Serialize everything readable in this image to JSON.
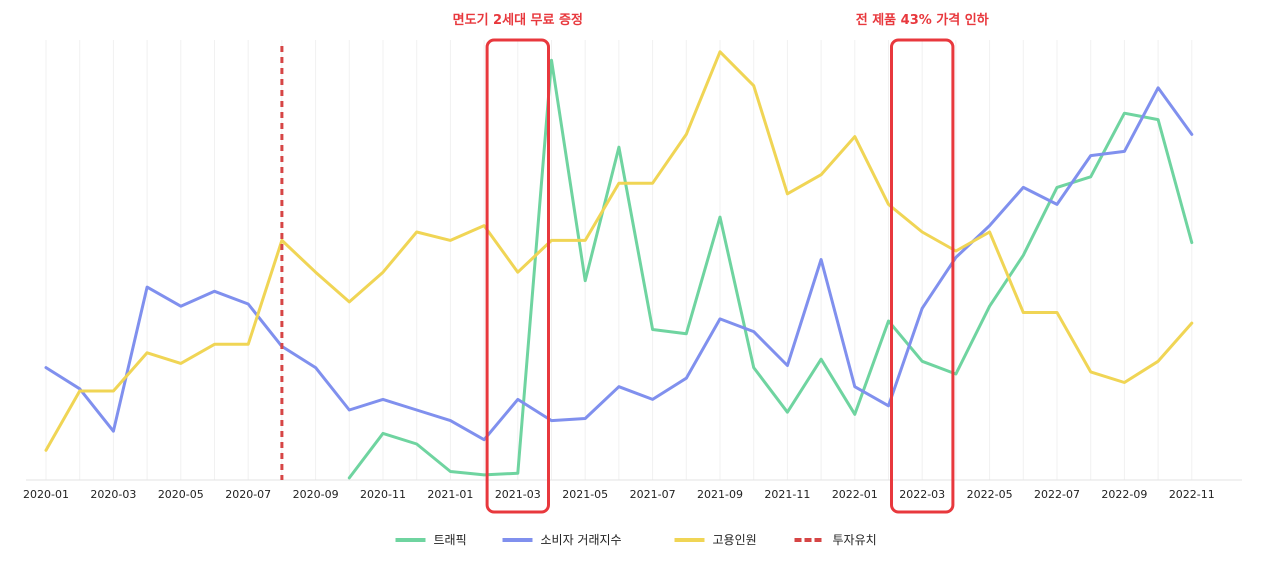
{
  "chart_data": {
    "type": "line",
    "x": [
      "2020-01",
      "2020-02",
      "2020-03",
      "2020-04",
      "2020-05",
      "2020-06",
      "2020-07",
      "2020-08",
      "2020-09",
      "2020-10",
      "2020-11",
      "2020-12",
      "2021-01",
      "2021-02",
      "2021-03",
      "2021-04",
      "2021-05",
      "2021-06",
      "2021-07",
      "2021-08",
      "2021-09",
      "2021-10",
      "2021-11",
      "2021-12",
      "2022-01",
      "2022-02",
      "2022-03",
      "2022-04",
      "2022-05",
      "2022-06",
      "2022-07",
      "2022-08",
      "2022-09",
      "2022-10",
      "2022-11"
    ],
    "x_tick_labels": [
      "2020-01",
      "2020-03",
      "2020-05",
      "2020-07",
      "2020-09",
      "2020-11",
      "2021-01",
      "2021-03",
      "2021-05",
      "2021-07",
      "2021-09",
      "2021-11",
      "2022-01",
      "2022-03",
      "2022-05",
      "2022-07",
      "2022-09",
      "2022-11"
    ],
    "ylim": [
      0,
      100
    ],
    "grid": "vertical",
    "legend_position": "bottom",
    "series": [
      {
        "name": "트래픽",
        "color": "#6fd4a0",
        "style": "solid",
        "values": [
          null,
          null,
          null,
          null,
          null,
          null,
          null,
          null,
          null,
          0.5,
          11,
          8.5,
          2,
          1.2,
          1.6,
          99,
          47,
          78.5,
          35.5,
          34.5,
          62,
          26.5,
          16,
          28.5,
          15.5,
          37.5,
          28,
          25,
          41,
          53,
          69,
          71.5,
          86.5,
          85,
          56
        ]
      },
      {
        "name": "소비자 거래지수",
        "color": "#8090ee",
        "style": "solid",
        "values": [
          26.5,
          21.5,
          11.5,
          45.5,
          41,
          44.5,
          41.5,
          31.5,
          26.5,
          16.5,
          19,
          16.5,
          14,
          9.5,
          19,
          14,
          14.5,
          22,
          19,
          24,
          38,
          35,
          27,
          52,
          22,
          17.5,
          40.5,
          52.5,
          60,
          69,
          65,
          76.5,
          77.5,
          92.5,
          81.5
        ]
      },
      {
        "name": "고용인원",
        "color": "#f0d555",
        "style": "solid",
        "values": [
          7,
          21,
          21,
          30,
          27.5,
          32,
          32,
          56.5,
          49,
          42,
          49,
          58.5,
          56.5,
          60,
          49,
          56.5,
          56.5,
          70,
          70,
          81.5,
          101,
          93,
          67.5,
          72,
          81,
          65,
          58.5,
          54,
          58.5,
          39.5,
          39.5,
          25.5,
          23,
          28,
          37
        ]
      }
    ],
    "events": [
      {
        "name": "투자유치",
        "color": "#d64545",
        "style": "dashed",
        "x": "2020-08"
      }
    ],
    "annotations": [
      {
        "text": "면도기 2세대 무료 증정",
        "color": "#e8383d",
        "x_range": [
          "2021-02",
          "2021-04"
        ]
      },
      {
        "text": "전 제품 43% 가격 인하",
        "color": "#e8383d",
        "x_range": [
          "2022-02",
          "2022-04"
        ]
      }
    ]
  }
}
